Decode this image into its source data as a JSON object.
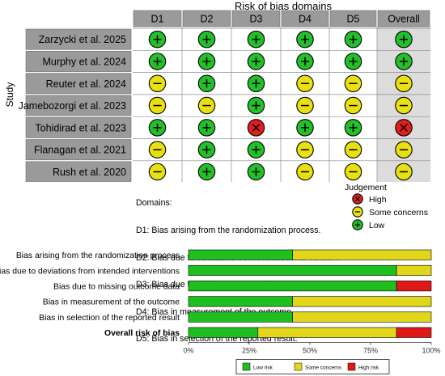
{
  "header": {
    "title": "Risk of bias domains",
    "study_axis": "Study"
  },
  "domains": [
    "D1",
    "D2",
    "D3",
    "D4",
    "D5",
    "Overall"
  ],
  "studies": [
    {
      "name": "Zarzycki et al. 2025",
      "judgements": [
        "low",
        "low",
        "low",
        "low",
        "low",
        "low"
      ]
    },
    {
      "name": "Murphy et al. 2024",
      "judgements": [
        "low",
        "low",
        "low",
        "low",
        "low",
        "low"
      ]
    },
    {
      "name": "Reuter et al. 2024",
      "judgements": [
        "some",
        "low",
        "low",
        "some",
        "some",
        "some"
      ]
    },
    {
      "name": "Jamebozorgi et al. 2023",
      "judgements": [
        "some",
        "some",
        "low",
        "some",
        "some",
        "some"
      ]
    },
    {
      "name": "Tohidirad et al. 2023",
      "judgements": [
        "low",
        "low",
        "high",
        "low",
        "low",
        "high"
      ]
    },
    {
      "name": "Flanagan et al. 2021",
      "judgements": [
        "some",
        "low",
        "low",
        "some",
        "some",
        "some"
      ]
    },
    {
      "name": "Rush et al. 2020",
      "judgements": [
        "some",
        "low",
        "low",
        "some",
        "some",
        "some"
      ]
    }
  ],
  "symbols": {
    "low": "+",
    "some": "−",
    "high": "X"
  },
  "colors": {
    "low": "#22c02a",
    "some": "#e8e010",
    "high": "#e01e1e",
    "cell_bg": "#ffffff",
    "overall_bg": "#dcdcdc",
    "label_bg": "#9a9a9a",
    "header_bg": "#9a9a9a",
    "bar_low": "#1fbf1f",
    "bar_some": "#e2d61a",
    "bar_high": "#e01818"
  },
  "domain_legend": {
    "title": "Domains:",
    "items": [
      "D1: Bias arising from the randomization process.",
      "D2: Bias due to deviations from intended intervention.",
      "D3: Bias due to missing outcome data.",
      "D4: Bias in measurement of the outcome.",
      "D5: Bias in selection of the reported result."
    ]
  },
  "judgement_legend": {
    "title": "Judgement",
    "items": [
      {
        "key": "high",
        "label": "High"
      },
      {
        "key": "some",
        "label": "Some concerns"
      },
      {
        "key": "low",
        "label": "Low"
      }
    ]
  },
  "chart_data": {
    "type": "bar",
    "orientation": "horizontal-stacked",
    "categories": [
      "Bias arising from the randomization process",
      "Bias due to deviations from intended interventions",
      "Bias due to missing outcome data",
      "Bias in measurement of the outcome",
      "Bias in selection of the reported result",
      "Overall risk of bias"
    ],
    "bold_categories": [
      "Overall risk of bias"
    ],
    "series": [
      {
        "name": "Low risk",
        "key": "low",
        "values": [
          42.9,
          85.7,
          85.7,
          42.9,
          42.9,
          28.6
        ]
      },
      {
        "name": "Some concerns",
        "key": "some",
        "values": [
          57.1,
          14.3,
          0,
          57.1,
          57.1,
          57.1
        ]
      },
      {
        "name": "High risk",
        "key": "high",
        "values": [
          0,
          0,
          14.3,
          0,
          0,
          14.3
        ]
      }
    ],
    "xticks": [
      "0%",
      "25%",
      "50%",
      "75%",
      "100%"
    ],
    "xlim": [
      0,
      100
    ],
    "legend_position": "bottom"
  }
}
